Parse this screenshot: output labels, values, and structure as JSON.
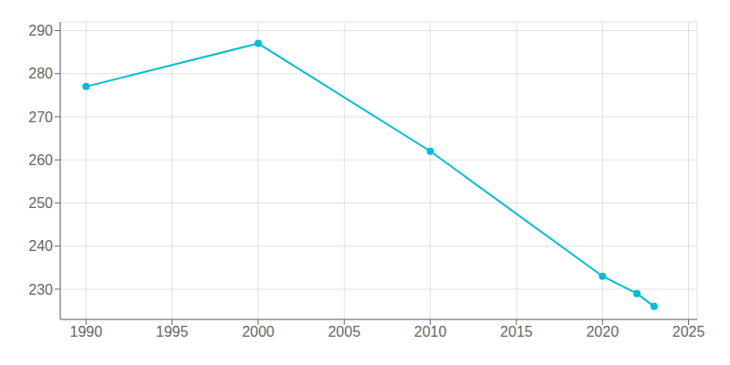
{
  "chart_data": {
    "type": "line",
    "x": [
      1990,
      2000,
      2010,
      2020,
      2022,
      2023
    ],
    "values": [
      277,
      287,
      262,
      233,
      229,
      226
    ],
    "color": "#00bcd4",
    "marker": "circle",
    "xlim": [
      1988.5,
      2025.5
    ],
    "xticks": [
      1990,
      1995,
      2000,
      2005,
      2010,
      2015,
      2020,
      2025
    ],
    "ylim": [
      223,
      292
    ],
    "yticks": [
      230,
      240,
      250,
      260,
      270,
      280,
      290
    ],
    "grid": true
  }
}
